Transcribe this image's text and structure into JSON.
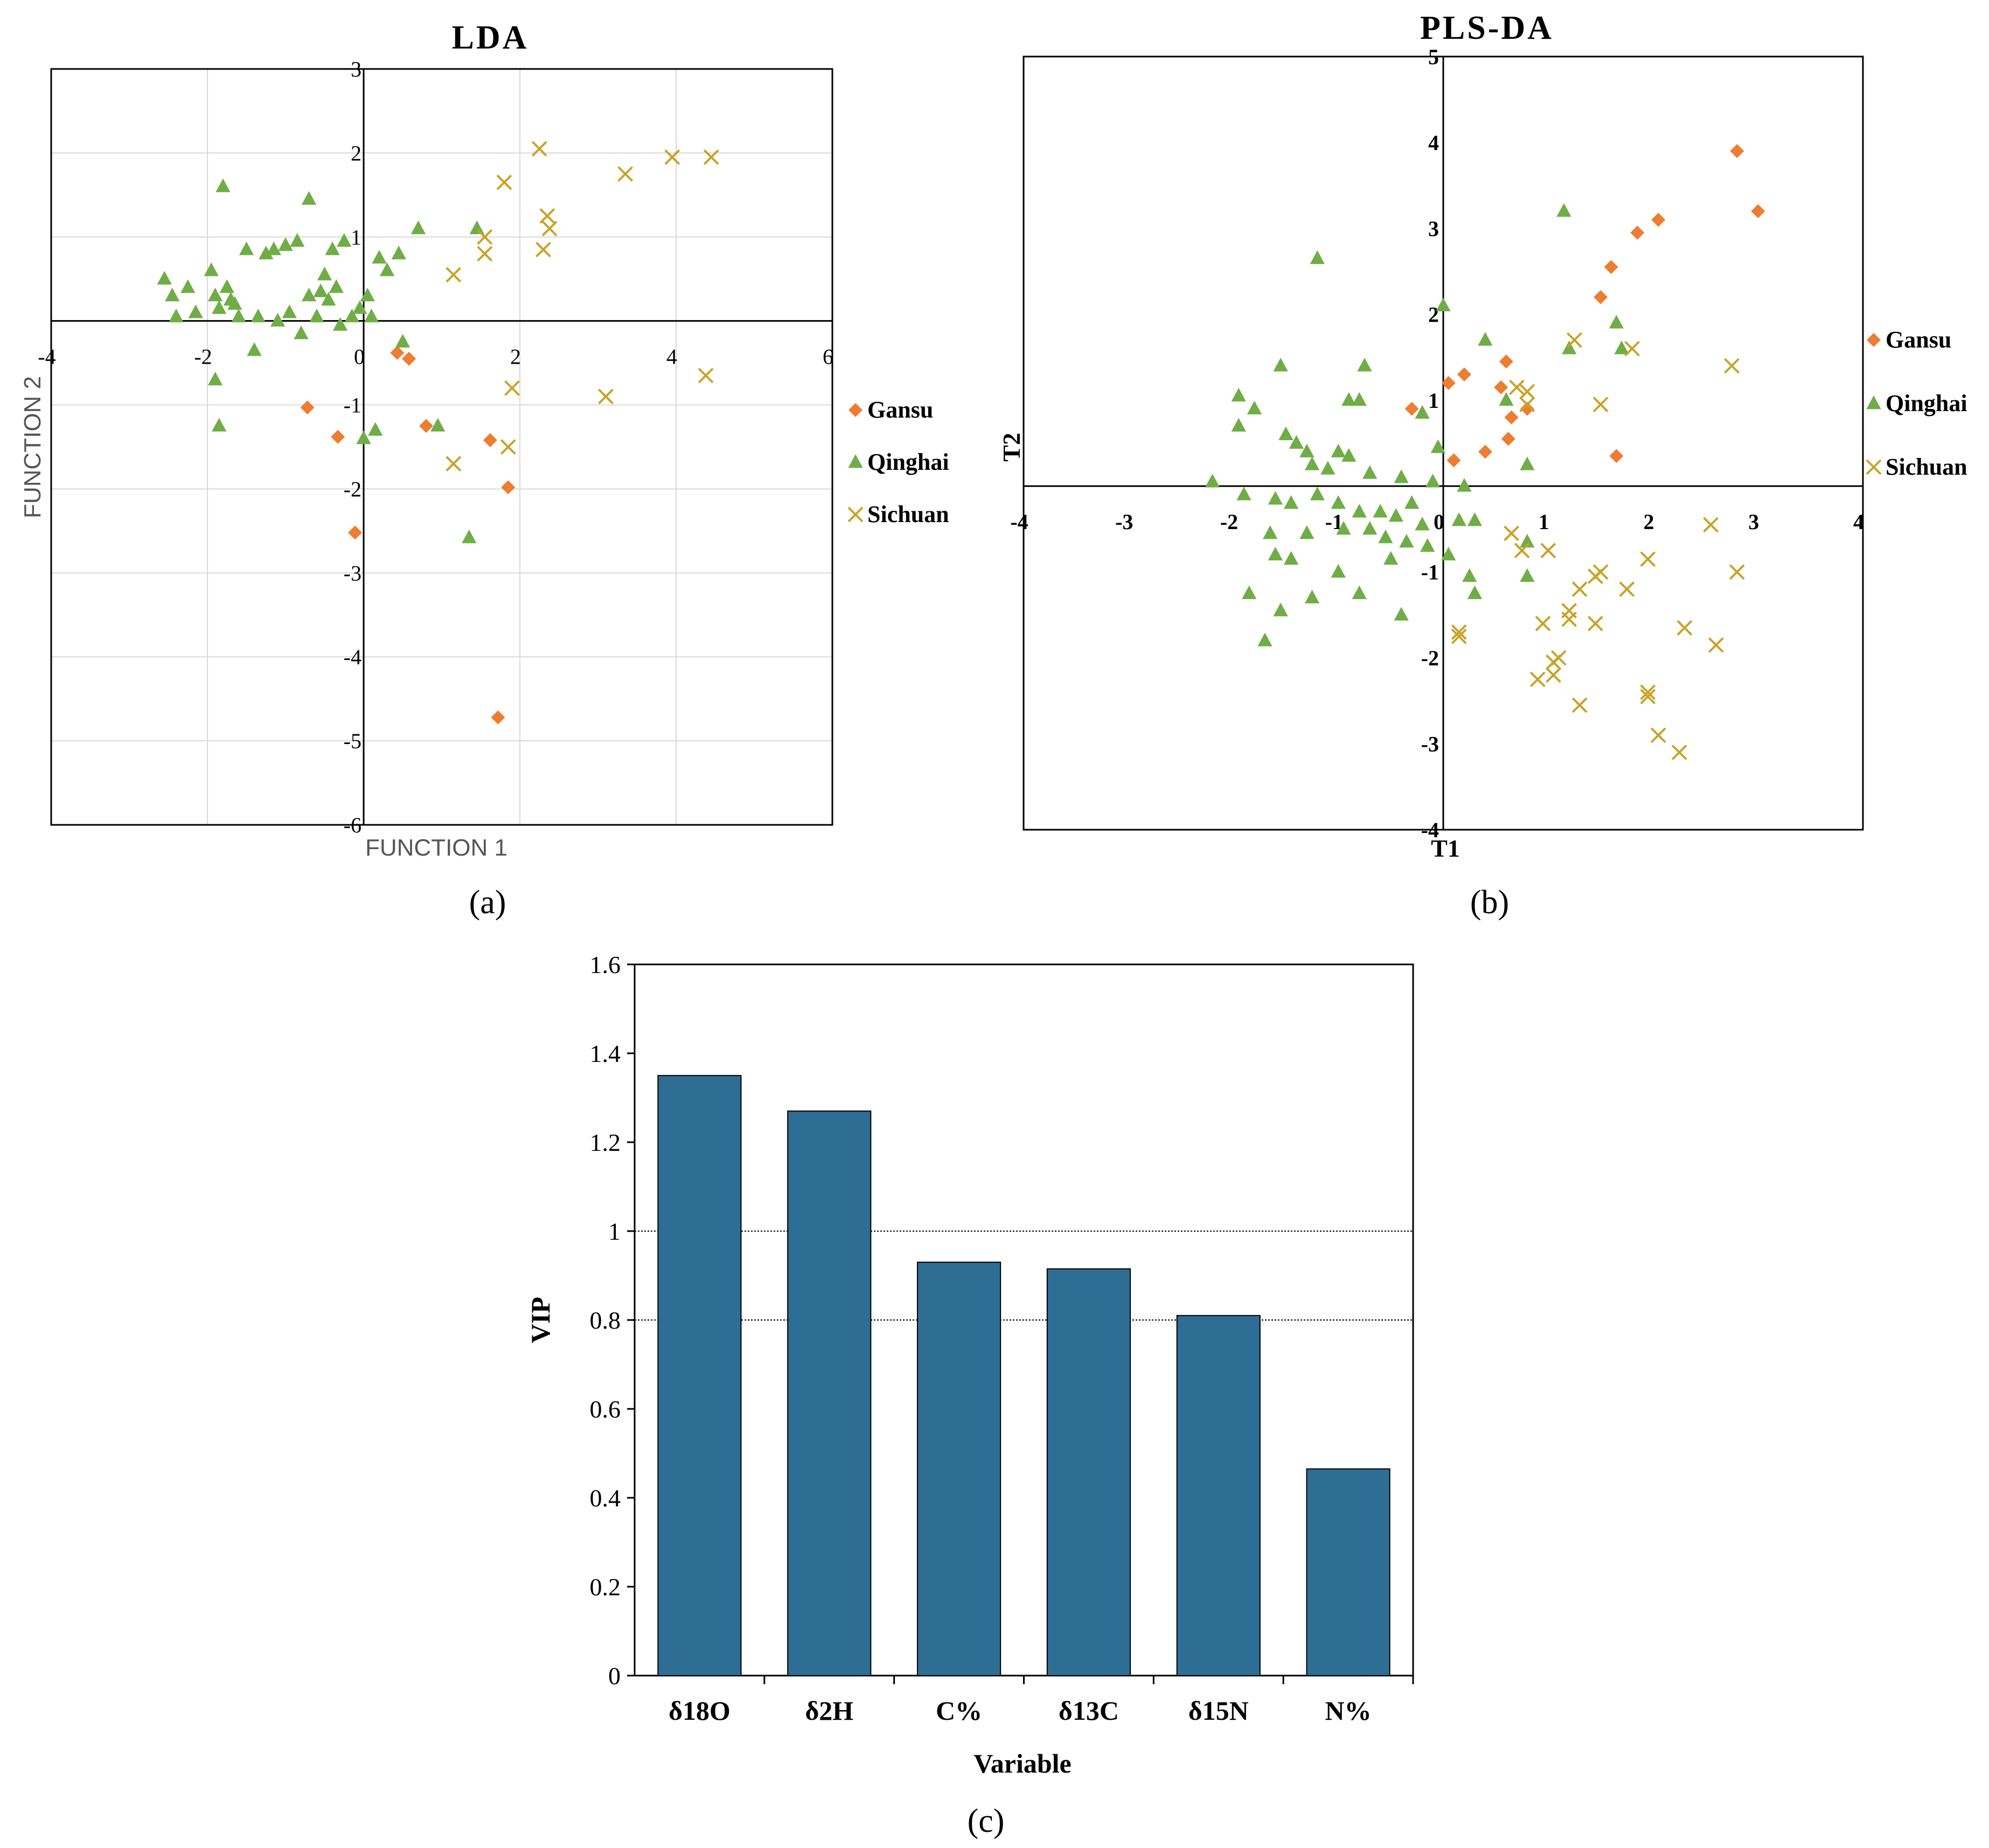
{
  "colors": {
    "Gansu": "#ed7d31",
    "Qinghai": "#70ad47",
    "Sichuan": "#c9a227",
    "bar": "#2e6e94"
  },
  "chart_data": [
    {
      "id": "lda",
      "panel_label": "(a)",
      "type": "scatter",
      "title": "LDA",
      "xlabel": "FUNCTION 1",
      "ylabel": "FUNCTION 2",
      "xlim": [
        -4,
        6
      ],
      "ylim": [
        -6,
        3
      ],
      "xticks": [
        -4,
        -2,
        0,
        2,
        4,
        6
      ],
      "yticks": [
        -6,
        -5,
        -4,
        -3,
        -2,
        -1,
        0,
        1,
        2,
        3
      ],
      "tick_labels_x": [
        "-4",
        "-2",
        "0",
        "2",
        "4",
        "6"
      ],
      "tick_labels_y": [
        "-6",
        "-5",
        "-4",
        "-3",
        "-2",
        "-1",
        "0",
        "1",
        "2",
        "3"
      ],
      "grid": true,
      "legend": "right",
      "series": [
        {
          "name": "Gansu",
          "marker": "diamond",
          "points": [
            [
              -0.72,
              -1.03
            ],
            [
              -0.33,
              -1.38
            ],
            [
              -0.11,
              -2.52
            ],
            [
              0.43,
              -0.38
            ],
            [
              0.8,
              -1.25
            ],
            [
              1.62,
              -1.42
            ],
            [
              1.85,
              -1.98
            ],
            [
              1.72,
              -4.72
            ],
            [
              0.58,
              -0.45
            ]
          ]
        },
        {
          "name": "Qinghai",
          "marker": "triangle",
          "points": [
            [
              -2.55,
              0.5
            ],
            [
              -2.45,
              0.3
            ],
            [
              -2.4,
              0.05
            ],
            [
              -2.25,
              0.4
            ],
            [
              -2.15,
              0.1
            ],
            [
              -1.95,
              0.6
            ],
            [
              -1.9,
              0.3
            ],
            [
              -1.9,
              -0.7
            ],
            [
              -1.85,
              0.15
            ],
            [
              -1.8,
              1.6
            ],
            [
              -1.75,
              0.4
            ],
            [
              -1.7,
              0.25
            ],
            [
              -1.65,
              0.2
            ],
            [
              -1.6,
              0.05
            ],
            [
              -1.5,
              0.85
            ],
            [
              -1.4,
              -0.35
            ],
            [
              -1.35,
              0.05
            ],
            [
              -1.25,
              0.8
            ],
            [
              -1.15,
              0.85
            ],
            [
              -1.1,
              0.0
            ],
            [
              -1.0,
              0.9
            ],
            [
              -0.95,
              0.1
            ],
            [
              -0.85,
              0.95
            ],
            [
              -0.8,
              -0.15
            ],
            [
              -0.7,
              1.45
            ],
            [
              -0.7,
              0.3
            ],
            [
              -0.6,
              0.05
            ],
            [
              -0.55,
              0.35
            ],
            [
              -0.5,
              0.55
            ],
            [
              -0.45,
              0.25
            ],
            [
              -0.4,
              0.85
            ],
            [
              -0.35,
              0.4
            ],
            [
              -0.3,
              -0.05
            ],
            [
              -0.25,
              0.95
            ],
            [
              -0.15,
              0.05
            ],
            [
              -0.05,
              0.15
            ],
            [
              0.0,
              -1.4
            ],
            [
              0.05,
              0.3
            ],
            [
              0.1,
              0.05
            ],
            [
              0.15,
              -1.3
            ],
            [
              0.2,
              0.75
            ],
            [
              0.3,
              0.6
            ],
            [
              0.45,
              0.8
            ],
            [
              0.5,
              -0.25
            ],
            [
              0.7,
              1.1
            ],
            [
              0.95,
              -1.25
            ],
            [
              1.45,
              1.1
            ],
            [
              1.35,
              -2.58
            ],
            [
              -1.85,
              -1.25
            ]
          ]
        },
        {
          "name": "Sichuan",
          "marker": "x",
          "points": [
            [
              1.15,
              0.55
            ],
            [
              1.55,
              0.8
            ],
            [
              1.55,
              1.0
            ],
            [
              1.8,
              1.65
            ],
            [
              2.25,
              2.05
            ],
            [
              2.35,
              1.25
            ],
            [
              2.38,
              1.1
            ],
            [
              2.3,
              0.85
            ],
            [
              3.35,
              1.75
            ],
            [
              3.95,
              1.95
            ],
            [
              4.45,
              1.95
            ],
            [
              4.38,
              -0.65
            ],
            [
              3.1,
              -0.9
            ],
            [
              1.9,
              -0.8
            ],
            [
              1.15,
              -1.7
            ],
            [
              1.85,
              -1.5
            ]
          ]
        }
      ]
    },
    {
      "id": "plsda",
      "panel_label": "(b)",
      "type": "scatter",
      "title": "PLS-DA",
      "xlabel": "T1",
      "ylabel": "T2",
      "xlim": [
        -4,
        4
      ],
      "ylim": [
        -4,
        5
      ],
      "xticks": [
        -4,
        -3,
        -2,
        -1,
        0,
        1,
        2,
        3,
        4
      ],
      "yticks": [
        -4,
        -3,
        -2,
        -1,
        0,
        1,
        2,
        3,
        4,
        5
      ],
      "tick_labels_x": [
        "-4",
        "-3",
        "-2",
        "-1",
        "0",
        "1",
        "2",
        "3",
        "4"
      ],
      "tick_labels_y": [
        "-4",
        "-3",
        "-2",
        "-1",
        "0",
        "1",
        "2",
        "3",
        "4",
        "5"
      ],
      "grid": false,
      "legend": "right",
      "series": [
        {
          "name": "Gansu",
          "marker": "diamond",
          "points": [
            [
              2.8,
              3.9
            ],
            [
              3.0,
              3.2
            ],
            [
              2.05,
              3.1
            ],
            [
              1.85,
              2.95
            ],
            [
              1.6,
              2.55
            ],
            [
              1.5,
              2.2
            ],
            [
              1.65,
              0.35
            ],
            [
              0.6,
              1.45
            ],
            [
              0.55,
              1.15
            ],
            [
              0.65,
              0.8
            ],
            [
              0.62,
              0.55
            ],
            [
              0.4,
              0.4
            ],
            [
              0.8,
              0.9
            ],
            [
              0.2,
              1.3
            ],
            [
              0.05,
              1.2
            ],
            [
              -0.3,
              0.9
            ],
            [
              0.1,
              0.3
            ]
          ]
        },
        {
          "name": "Qinghai",
          "marker": "triangle",
          "points": [
            [
              1.15,
              3.2
            ],
            [
              -1.2,
              2.65
            ],
            [
              0.0,
              2.1
            ],
            [
              0.4,
              1.7
            ],
            [
              1.2,
              1.6
            ],
            [
              1.65,
              1.9
            ],
            [
              1.7,
              1.6
            ],
            [
              -1.95,
              1.05
            ],
            [
              -1.8,
              0.9
            ],
            [
              -1.95,
              0.7
            ],
            [
              -1.55,
              1.4
            ],
            [
              -0.75,
              1.4
            ],
            [
              -0.8,
              1.0
            ],
            [
              -0.9,
              1.0
            ],
            [
              -0.2,
              0.85
            ],
            [
              0.6,
              1.0
            ],
            [
              -1.5,
              0.6
            ],
            [
              -1.4,
              0.5
            ],
            [
              -1.3,
              0.4
            ],
            [
              -1.0,
              0.4
            ],
            [
              -0.9,
              0.35
            ],
            [
              -1.25,
              0.25
            ],
            [
              -1.1,
              0.2
            ],
            [
              -0.7,
              0.15
            ],
            [
              -0.4,
              0.1
            ],
            [
              -0.1,
              0.05
            ],
            [
              -2.2,
              0.05
            ],
            [
              -1.9,
              -0.1
            ],
            [
              -1.6,
              -0.15
            ],
            [
              -1.45,
              -0.2
            ],
            [
              -1.2,
              -0.1
            ],
            [
              -1.0,
              -0.2
            ],
            [
              -0.8,
              -0.3
            ],
            [
              -0.6,
              -0.3
            ],
            [
              -0.45,
              -0.35
            ],
            [
              -0.3,
              -0.2
            ],
            [
              -0.2,
              -0.45
            ],
            [
              0.15,
              -0.4
            ],
            [
              0.3,
              -0.4
            ],
            [
              -1.65,
              -0.55
            ],
            [
              -1.3,
              -0.55
            ],
            [
              -0.95,
              -0.5
            ],
            [
              -0.7,
              -0.5
            ],
            [
              -0.55,
              -0.6
            ],
            [
              -0.35,
              -0.65
            ],
            [
              -0.15,
              -0.7
            ],
            [
              0.05,
              -0.8
            ],
            [
              -1.6,
              -0.8
            ],
            [
              -1.45,
              -0.85
            ],
            [
              -1.0,
              -1.0
            ],
            [
              -0.5,
              -0.85
            ],
            [
              0.8,
              -0.65
            ],
            [
              0.25,
              -1.05
            ],
            [
              0.3,
              -1.25
            ],
            [
              -1.85,
              -1.25
            ],
            [
              -1.55,
              -1.45
            ],
            [
              -1.25,
              -1.3
            ],
            [
              -0.8,
              -1.25
            ],
            [
              -0.4,
              -1.5
            ],
            [
              0.8,
              -1.05
            ],
            [
              -1.7,
              -1.8
            ],
            [
              0.8,
              0.25
            ],
            [
              -0.05,
              0.45
            ],
            [
              0.2,
              0.0
            ]
          ]
        },
        {
          "name": "Sichuan",
          "marker": "x",
          "points": [
            [
              2.75,
              1.4
            ],
            [
              1.8,
              1.6
            ],
            [
              1.25,
              1.7
            ],
            [
              1.5,
              0.95
            ],
            [
              0.7,
              1.15
            ],
            [
              0.8,
              1.1
            ],
            [
              0.8,
              0.95
            ],
            [
              0.65,
              -0.55
            ],
            [
              0.75,
              -0.75
            ],
            [
              1.0,
              -0.75
            ],
            [
              1.45,
              -1.05
            ],
            [
              1.5,
              -1.0
            ],
            [
              1.95,
              -0.85
            ],
            [
              2.55,
              -0.45
            ],
            [
              2.8,
              -1.0
            ],
            [
              1.75,
              -1.2
            ],
            [
              1.3,
              -1.2
            ],
            [
              1.2,
              -1.45
            ],
            [
              1.2,
              -1.55
            ],
            [
              0.95,
              -1.6
            ],
            [
              1.45,
              -1.6
            ],
            [
              2.3,
              -1.65
            ],
            [
              2.6,
              -1.85
            ],
            [
              0.15,
              -1.7
            ],
            [
              0.15,
              -1.75
            ],
            [
              1.05,
              -2.05
            ],
            [
              1.1,
              -2.0
            ],
            [
              0.9,
              -2.25
            ],
            [
              1.05,
              -2.2
            ],
            [
              1.95,
              -2.4
            ],
            [
              1.95,
              -2.45
            ],
            [
              1.3,
              -2.55
            ],
            [
              2.05,
              -2.9
            ],
            [
              2.25,
              -3.1
            ]
          ]
        }
      ]
    },
    {
      "id": "vip",
      "panel_label": "(c)",
      "type": "bar",
      "title": "",
      "xlabel": "Variable",
      "ylabel": "VIP",
      "categories": [
        "δ18O",
        "δ2H",
        "C%",
        "δ13C",
        "δ15N",
        "N%"
      ],
      "values": [
        1.35,
        1.27,
        0.93,
        0.915,
        0.81,
        0.465
      ],
      "ylim": [
        0,
        1.6
      ],
      "yticks": [
        0,
        0.2,
        0.4,
        0.6,
        0.8,
        1.0,
        1.2,
        1.4,
        1.6
      ],
      "tick_labels_y": [
        "0",
        "0.2",
        "0.4",
        "0.6",
        "0.8",
        "1",
        "1.2",
        "1.4",
        "1.6"
      ],
      "reference_lines": [
        0.8,
        1.0
      ],
      "grid": false
    }
  ]
}
